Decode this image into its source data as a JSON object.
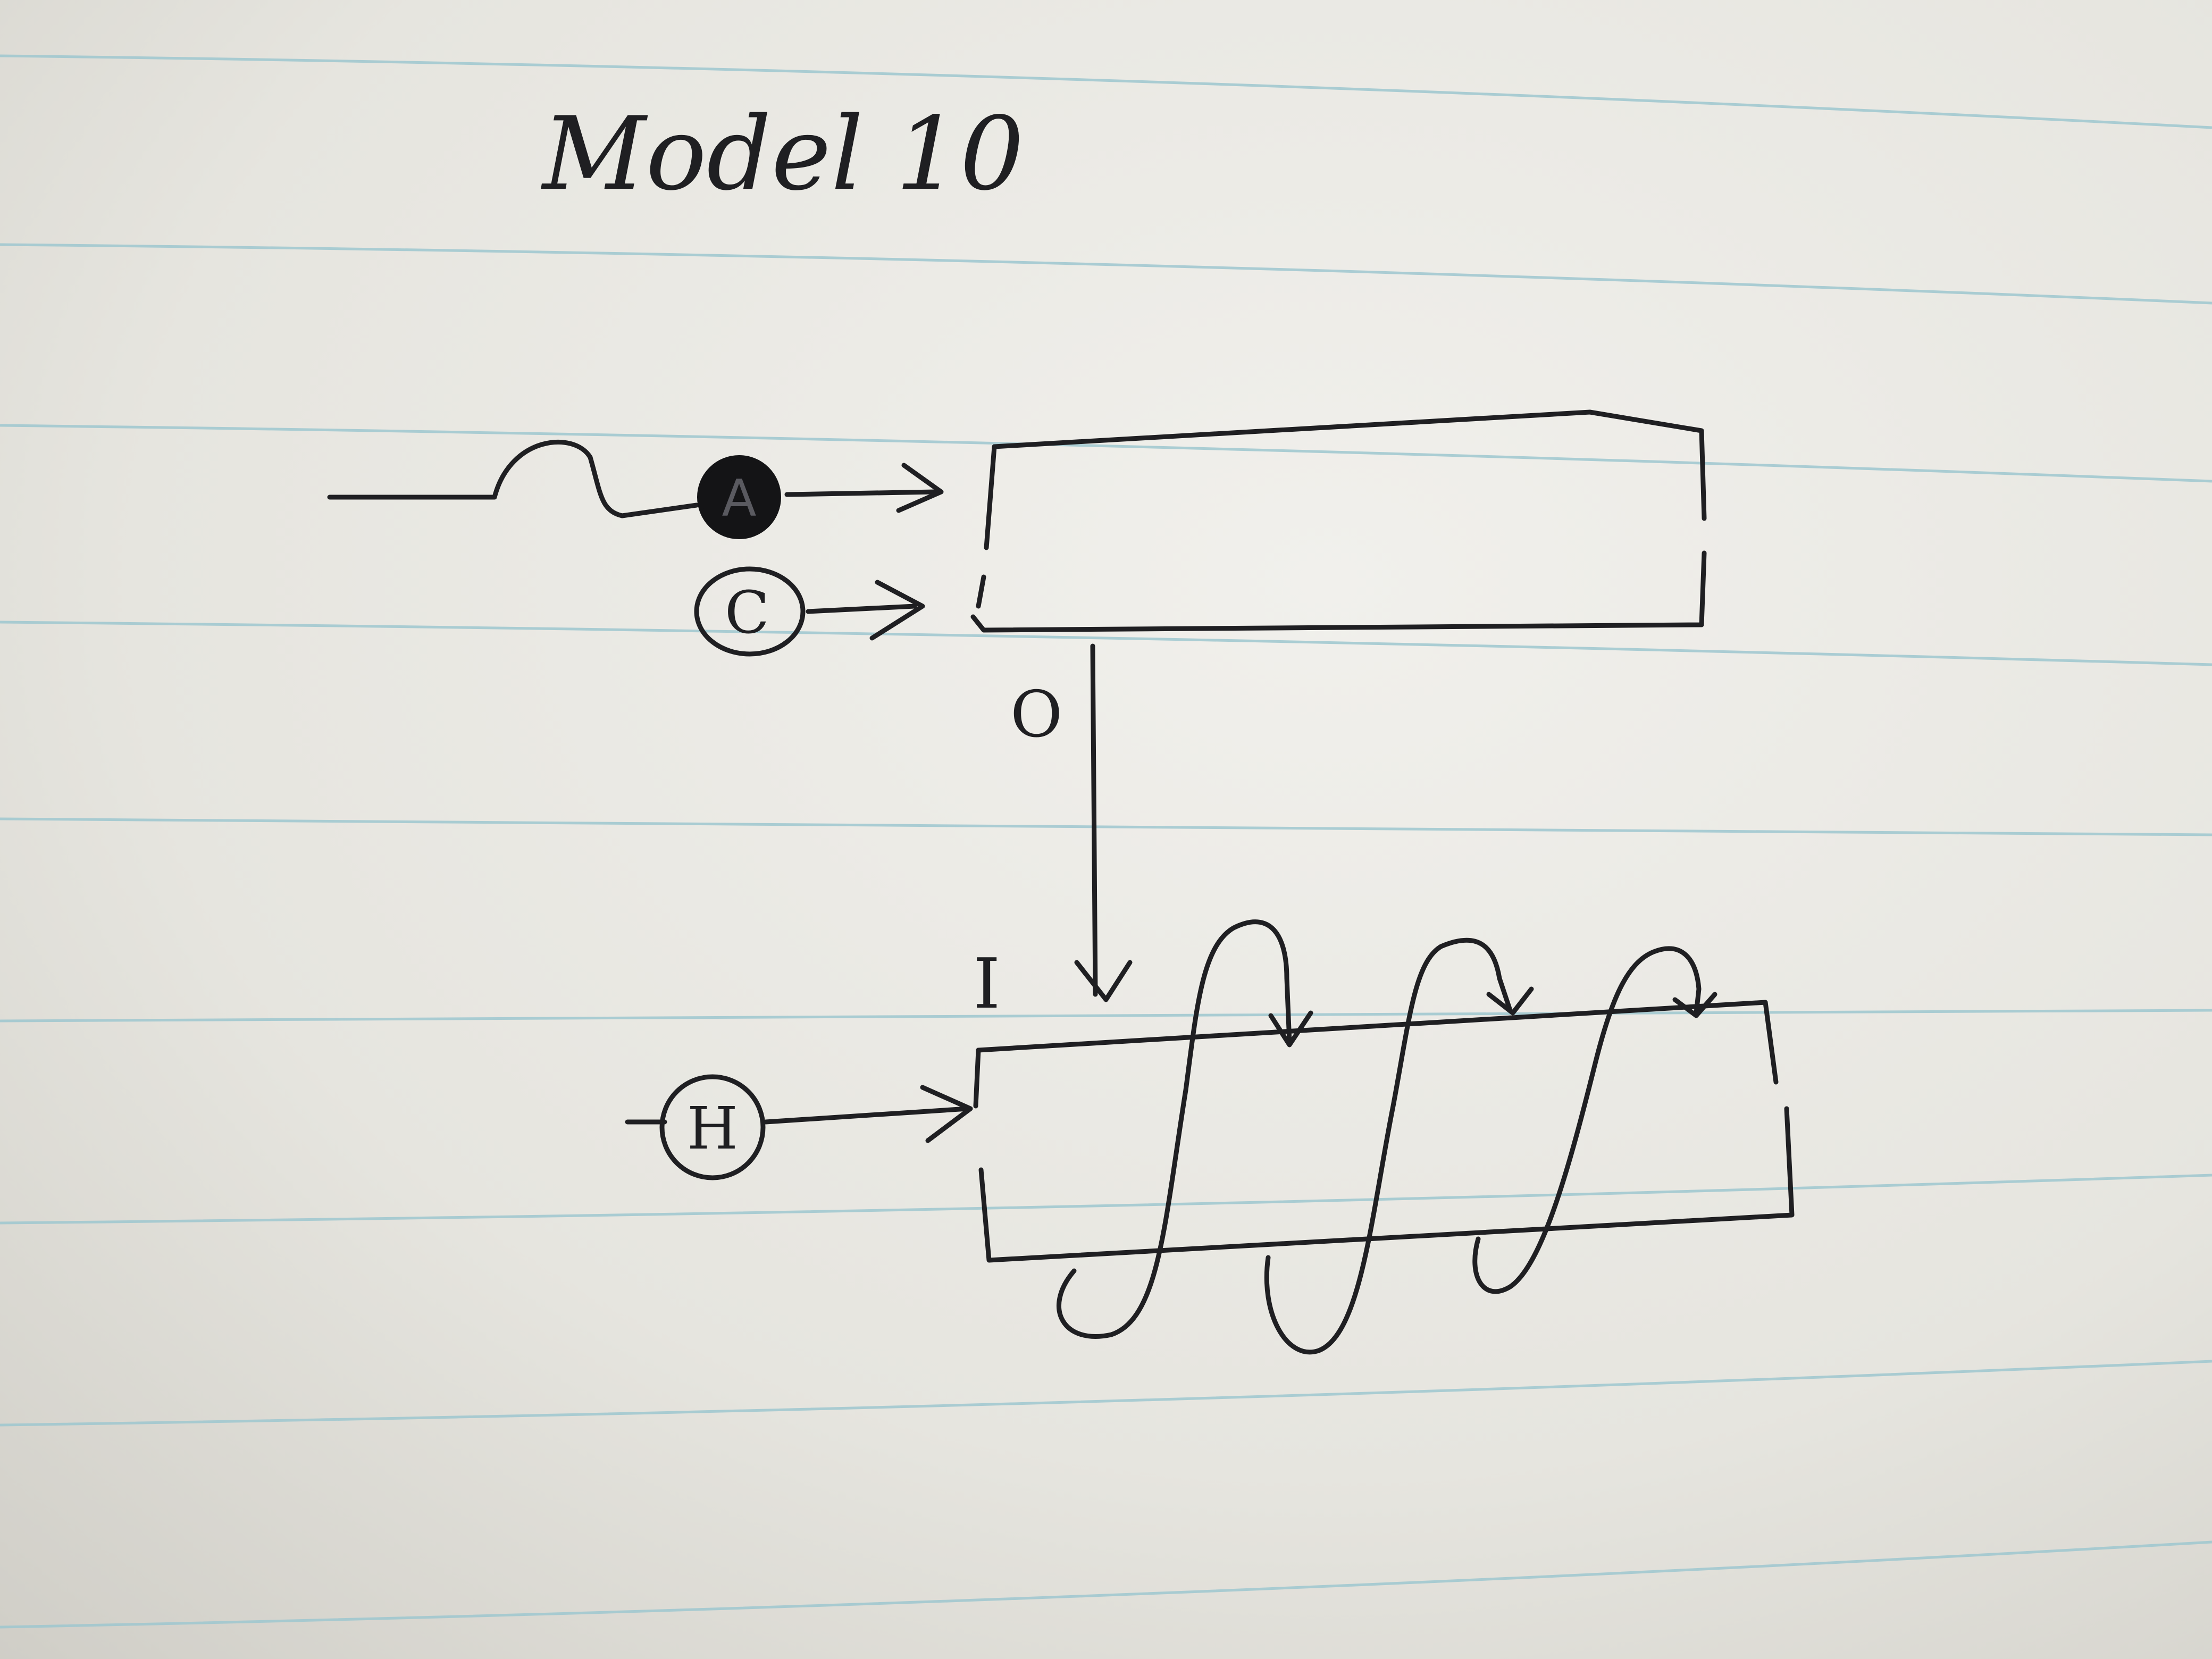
{
  "title": "Model 10",
  "labels": {
    "circle_a": "A",
    "circle_c": "C",
    "circle_h": "H",
    "out_label": "O",
    "in_label": "I"
  },
  "colors": {
    "paper": "#e9e8e3",
    "rule": "#9dc7cf",
    "ink": "#1f1f22"
  }
}
